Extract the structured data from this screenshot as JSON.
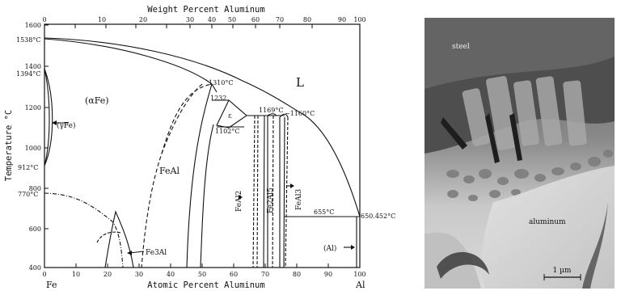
{
  "phase_diagram": {
    "top_axis_title": "Weight Percent Aluminum",
    "bottom_axis_title": "Atomic Percent Aluminum",
    "y_axis_title": "Temperature °C",
    "left_element": "Fe",
    "right_element": "Al",
    "top_ticks": [
      "0",
      "10",
      "20",
      "30",
      "40",
      "50",
      "60",
      "70",
      "80",
      "90",
      "100"
    ],
    "bottom_ticks": [
      "0",
      "10",
      "20",
      "30",
      "40",
      "50",
      "60",
      "70",
      "80",
      "90",
      "100"
    ],
    "y_ticks": [
      "400",
      "600",
      "800",
      "1000",
      "1200",
      "1400",
      "1600"
    ],
    "temperature_labels": {
      "fe_melting": "1538°C",
      "fe_delta": "1394°C",
      "fe_alpha": "912°C",
      "curie": "770°C",
      "t1310": "1310°C",
      "t1232": "1232",
      "t1169": "1169°C",
      "t1160": "~1160°C",
      "t1102": "1102°C",
      "t655": "655°C",
      "al_melting": "650.452°C"
    },
    "phase_labels": {
      "liquid": "L",
      "alpha_fe": "(αFe)",
      "gamma_fe": "(γFe)",
      "feal": "FeAl",
      "epsilon": "ε",
      "fe3al": "Fe3Al",
      "feal2": "FeAl2",
      "fe2al5": "Fe2Al5",
      "feal3": "FeAl3",
      "al": "(Al)"
    }
  },
  "micrograph": {
    "label_steel": "steel",
    "label_aluminum": "aluminum",
    "scale_label": "1 µm"
  }
}
